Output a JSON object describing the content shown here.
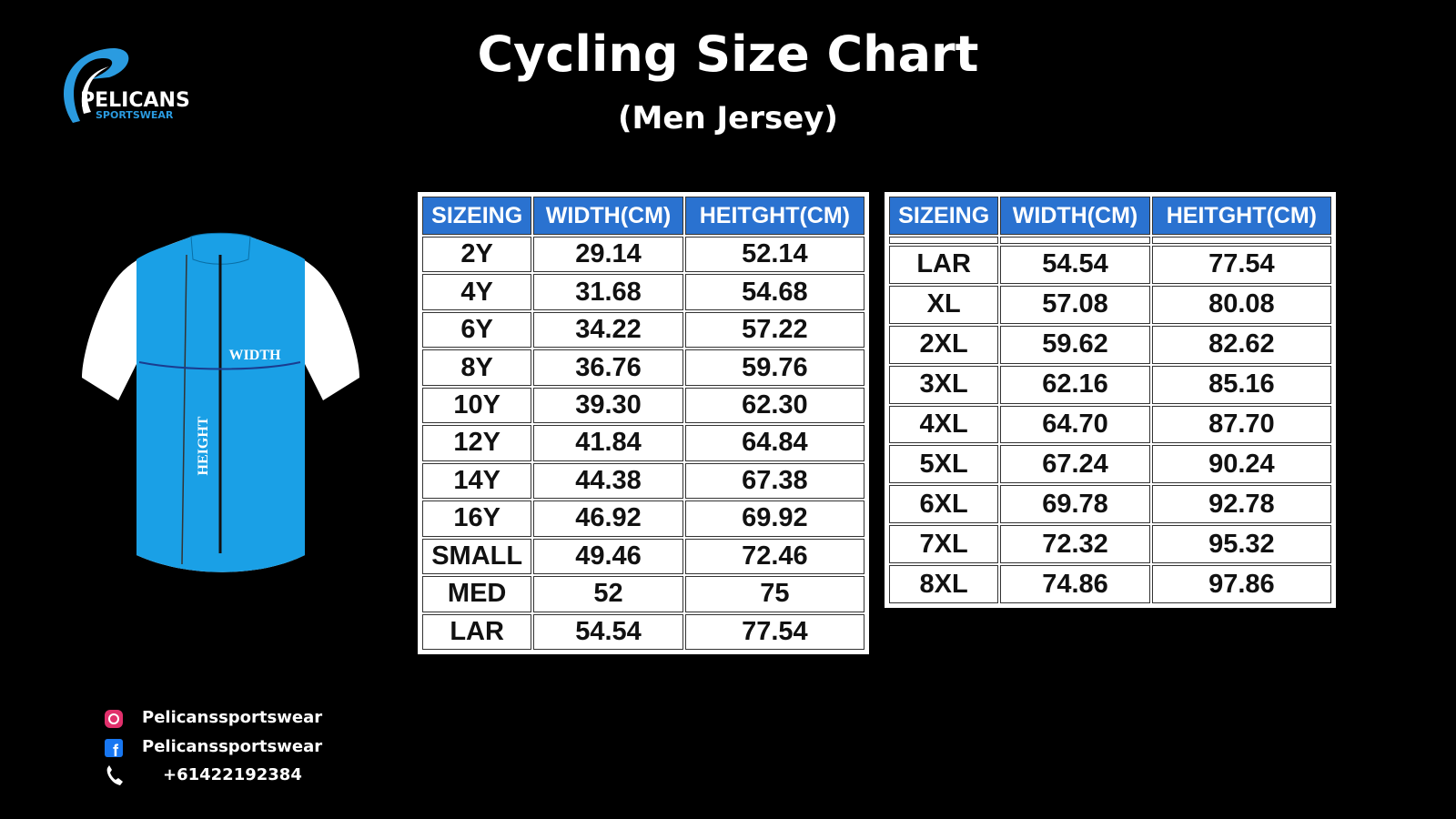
{
  "logo": {
    "name": "PELICANS",
    "tagline": "SPORTSWEAR"
  },
  "header": {
    "title": "Cycling Size Chart",
    "subtitle": "(Men Jersey)"
  },
  "jersey": {
    "width_label": "WIDTH",
    "height_label": "HEIGHT"
  },
  "tables": [
    {
      "columns": [
        "SIZEING",
        "WIDTH(CM)",
        "HEITGHT(CM)"
      ],
      "rows": [
        [
          "2Y",
          "29.14",
          "52.14"
        ],
        [
          "4Y",
          "31.68",
          "54.68"
        ],
        [
          "6Y",
          "34.22",
          "57.22"
        ],
        [
          "8Y",
          "36.76",
          "59.76"
        ],
        [
          "10Y",
          "39.30",
          "62.30"
        ],
        [
          "12Y",
          "41.84",
          "64.84"
        ],
        [
          "14Y",
          "44.38",
          "67.38"
        ],
        [
          "16Y",
          "46.92",
          "69.92"
        ],
        [
          "SMALL",
          "49.46",
          "72.46"
        ],
        [
          "MED",
          "52",
          "75"
        ],
        [
          "LAR",
          "54.54",
          "77.54"
        ]
      ]
    },
    {
      "columns": [
        "SIZEING",
        "WIDTH(CM)",
        "HEITGHT(CM)"
      ],
      "rows": [
        [
          "LAR",
          "54.54",
          "77.54"
        ],
        [
          "XL",
          "57.08",
          "80.08"
        ],
        [
          "2XL",
          "59.62",
          "82.62"
        ],
        [
          "3XL",
          "62.16",
          "85.16"
        ],
        [
          "4XL",
          "64.70",
          "87.70"
        ],
        [
          "5XL",
          "67.24",
          "90.24"
        ],
        [
          "6XL",
          "69.78",
          "92.78"
        ],
        [
          "7XL",
          "72.32",
          "95.32"
        ],
        [
          "8XL",
          "74.86",
          "97.86"
        ]
      ]
    }
  ],
  "contacts": {
    "instagram": "Pelicanssportswear",
    "facebook": "Pelicanssportswear",
    "phone": "+61422192384"
  }
}
